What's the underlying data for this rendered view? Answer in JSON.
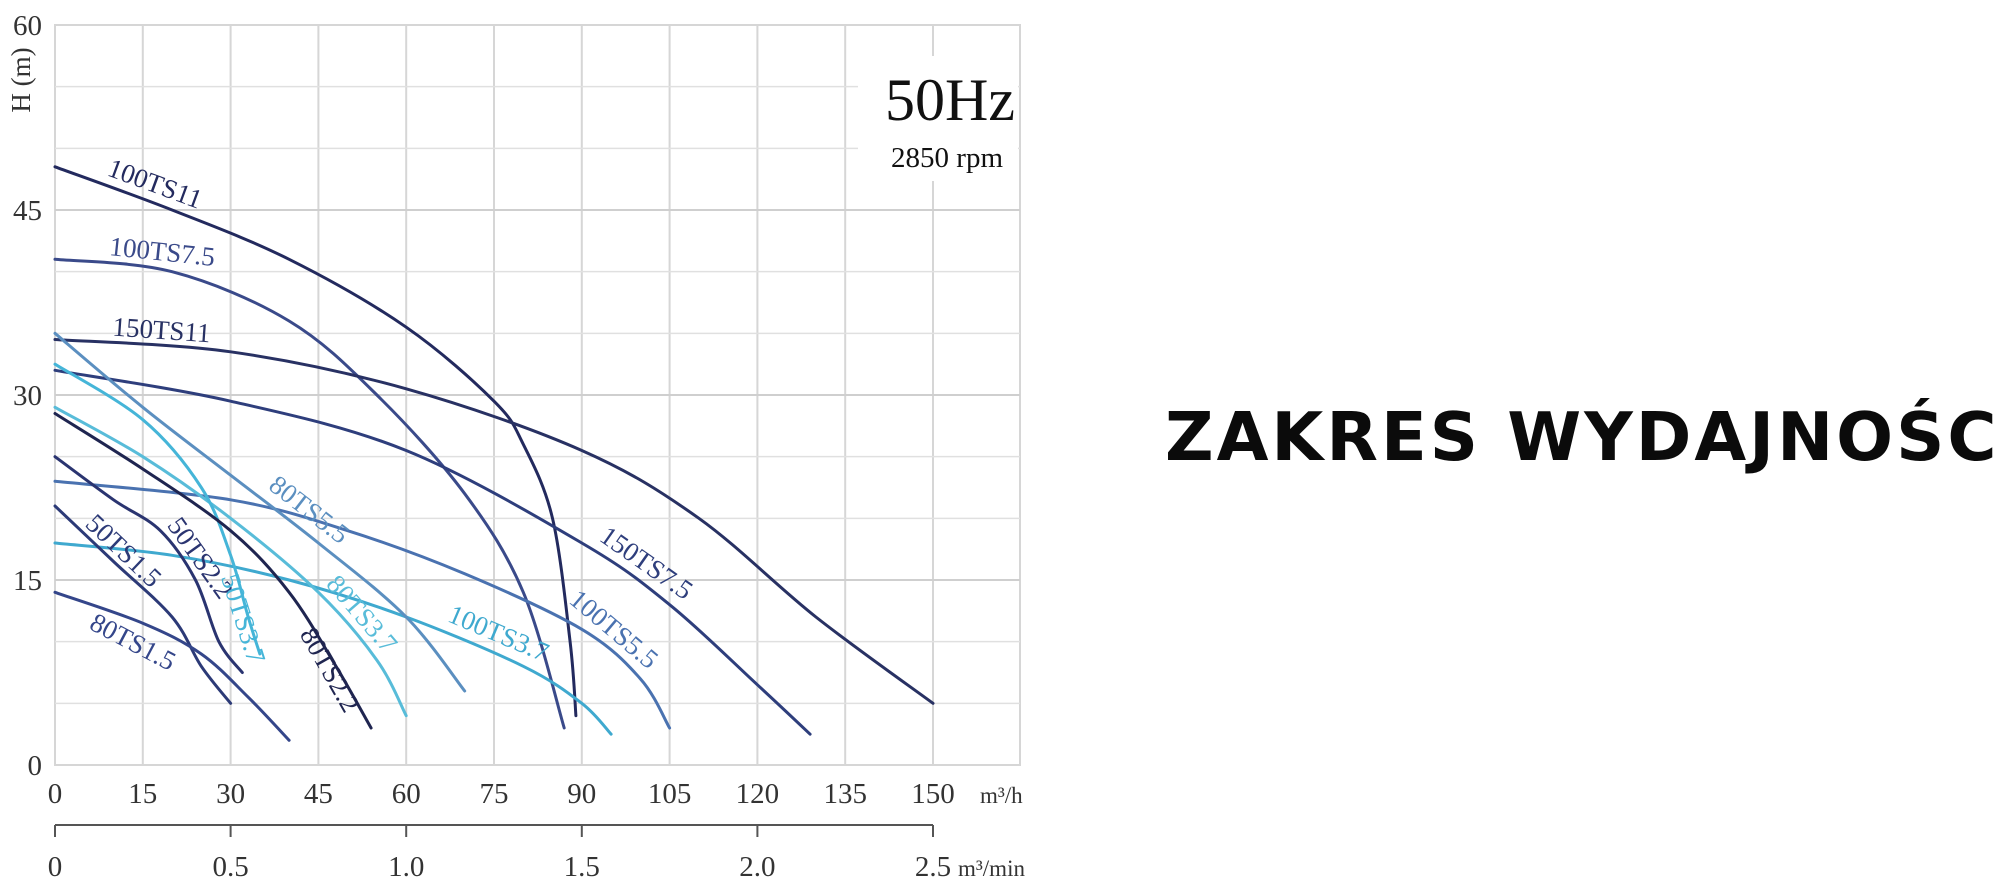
{
  "heading": "ZAKRES WYDAJNOŚCI",
  "chart_data": {
    "type": "line",
    "title": "50Hz",
    "subtitle": "2850 rpm",
    "ylabel": "H (m)",
    "xunit": "m³/h",
    "x2unit": "m³/min",
    "xlim": [
      0,
      165
    ],
    "ylim": [
      0,
      60
    ],
    "x_ticks": [
      "0",
      "15",
      "30",
      "45",
      "60",
      "75",
      "90",
      "105",
      "120",
      "135",
      "150"
    ],
    "x2_ticks": [
      "0",
      "0.5",
      "1.0",
      "1.5",
      "2.0",
      "2.5"
    ],
    "y_ticks": [
      "0",
      "15",
      "30",
      "45",
      "60"
    ],
    "grid": true,
    "series": [
      {
        "name": "100TS11",
        "color": "#232a5e",
        "x": [
          0,
          20,
          40,
          60,
          75,
          80,
          85,
          88,
          89
        ],
        "y": [
          48.5,
          45,
          41,
          35.5,
          29.5,
          26,
          20,
          10,
          4
        ]
      },
      {
        "name": "100TS7.5",
        "color": "#3a4a8a",
        "x": [
          0,
          20,
          40,
          55,
          70,
          80,
          87
        ],
        "y": [
          41,
          40,
          36,
          30,
          22,
          14,
          3
        ]
      },
      {
        "name": "150TS11",
        "color": "#283163",
        "x": [
          0,
          30,
          60,
          90,
          110,
          130,
          150
        ],
        "y": [
          34.5,
          33.5,
          30.5,
          25.5,
          20,
          12,
          5
        ]
      },
      {
        "name": "150TS7.5",
        "color": "#2e3e7c",
        "x": [
          0,
          30,
          60,
          90,
          105,
          120,
          129
        ],
        "y": [
          32,
          29.5,
          25.5,
          18,
          13,
          6.5,
          2.5
        ]
      },
      {
        "name": "100TS5.5",
        "color": "#4a72b0",
        "x": [
          0,
          30,
          50,
          70,
          90,
          100,
          105
        ],
        "y": [
          23,
          21.5,
          19,
          15.5,
          11,
          7,
          3
        ]
      },
      {
        "name": "100TS3.7",
        "color": "#3fa9cf",
        "x": [
          0,
          20,
          40,
          60,
          80,
          90,
          95
        ],
        "y": [
          18,
          17,
          15,
          12,
          8,
          5,
          2.5
        ]
      },
      {
        "name": "80TS5.5",
        "color": "#5b8fc0",
        "x": [
          0,
          15,
          30,
          45,
          60,
          70
        ],
        "y": [
          35,
          29,
          23.5,
          18,
          12,
          6
        ]
      },
      {
        "name": "80TS3.7",
        "color": "#58bcd9",
        "x": [
          0,
          15,
          30,
          45,
          55,
          60
        ],
        "y": [
          29,
          25,
          20,
          14,
          8.5,
          4
        ]
      },
      {
        "name": "50TS3.7",
        "color": "#45b5d8",
        "x": [
          0,
          15,
          25,
          30,
          33,
          35
        ],
        "y": [
          32.5,
          28,
          22.5,
          17,
          12,
          9
        ]
      },
      {
        "name": "80TS2.2",
        "color": "#1f2550",
        "x": [
          0,
          15,
          30,
          40,
          48,
          54
        ],
        "y": [
          28.5,
          24,
          19,
          14,
          8,
          3
        ]
      },
      {
        "name": "50TS2.2",
        "color": "#2a3470",
        "x": [
          0,
          10,
          18,
          24,
          28,
          32
        ],
        "y": [
          25,
          21.5,
          19,
          15,
          10,
          7.5
        ]
      },
      {
        "name": "50TS1.5",
        "color": "#2c3a77",
        "x": [
          0,
          10,
          20,
          25,
          30
        ],
        "y": [
          21,
          16.5,
          12,
          8,
          5
        ]
      },
      {
        "name": "80TS1.5",
        "color": "#34468a",
        "x": [
          0,
          15,
          25,
          33,
          40
        ],
        "y": [
          14,
          11.5,
          9,
          5.5,
          2
        ]
      }
    ]
  },
  "labels": [
    {
      "series": "100TS11",
      "text": "100TS11"
    },
    {
      "series": "100TS7.5",
      "text": "100TS7.5"
    },
    {
      "series": "150TS11",
      "text": "150TS11"
    },
    {
      "series": "80TS5.5",
      "text": "80TS5.5"
    },
    {
      "series": "150TS7.5",
      "text": "150TS7.5"
    },
    {
      "series": "50TS1.5",
      "text": "50TS1.5"
    },
    {
      "series": "50TS2.2",
      "text": "50TS2.2"
    },
    {
      "series": "50TS3.7",
      "text": "50TS3.7"
    },
    {
      "series": "80TS3.7",
      "text": "80TS3.7"
    },
    {
      "series": "100TS3.7",
      "text": "100TS3.7"
    },
    {
      "series": "100TS5.5",
      "text": "100TS5.5"
    },
    {
      "series": "80TS1.5",
      "text": "80TS1.5"
    },
    {
      "series": "80TS2.2",
      "text": "80TS2.2"
    }
  ]
}
